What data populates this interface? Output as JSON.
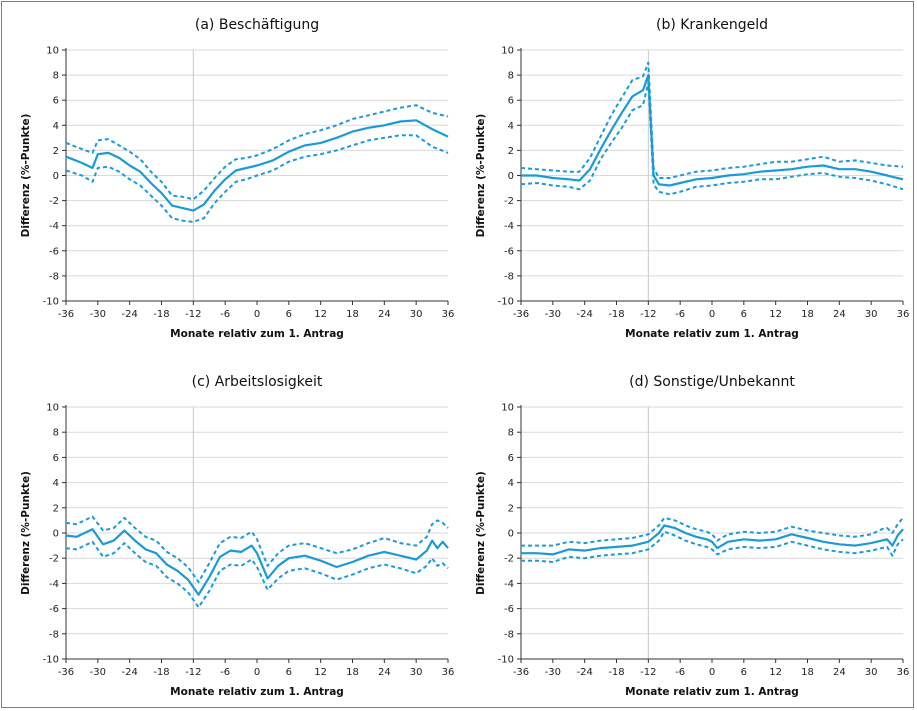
{
  "colors": {
    "line": "#1a9bd7",
    "frame": "#1ba1d9",
    "grid": "#d9d9d9"
  },
  "chart_data": [
    {
      "id": "a",
      "type": "line",
      "title": "(a) Beschäftigung",
      "xlabel": "Monate relativ zum 1. Antrag",
      "ylabel": "Differenz (%-Punkte)",
      "xlim": [
        -36,
        36
      ],
      "ylim": [
        -10,
        10
      ],
      "xticks": [
        -36,
        -30,
        -24,
        -18,
        -12,
        -6,
        0,
        6,
        12,
        18,
        24,
        30,
        36
      ],
      "yticks": [
        -10,
        -8,
        -6,
        -4,
        -2,
        0,
        2,
        4,
        6,
        8,
        10
      ],
      "reference_x": -12,
      "grid": true,
      "series": [
        {
          "role": "estimate",
          "x": [
            -36,
            -33,
            -31,
            -30,
            -28,
            -26,
            -24,
            -22,
            -20,
            -18,
            -16,
            -14,
            -12,
            -10,
            -8,
            -6,
            -4,
            -2,
            0,
            3,
            6,
            9,
            12,
            15,
            18,
            21,
            24,
            27,
            30,
            33,
            36
          ],
          "y": [
            1.5,
            1.0,
            0.6,
            1.7,
            1.8,
            1.4,
            0.8,
            0.3,
            -0.6,
            -1.4,
            -2.4,
            -2.6,
            -2.8,
            -2.3,
            -1.2,
            -0.3,
            0.4,
            0.6,
            0.8,
            1.2,
            1.9,
            2.4,
            2.6,
            3.0,
            3.5,
            3.8,
            4.0,
            4.3,
            4.4,
            3.7,
            3.1
          ]
        },
        {
          "role": "ci_upper",
          "x": [
            -36,
            -33,
            -31,
            -30,
            -28,
            -26,
            -24,
            -22,
            -20,
            -18,
            -16,
            -14,
            -12,
            -10,
            -8,
            -6,
            -4,
            -2,
            0,
            3,
            6,
            9,
            12,
            15,
            18,
            21,
            24,
            27,
            30,
            33,
            36
          ],
          "y": [
            2.6,
            2.1,
            1.8,
            2.8,
            2.9,
            2.4,
            1.9,
            1.3,
            0.3,
            -0.5,
            -1.6,
            -1.7,
            -1.9,
            -1.2,
            -0.2,
            0.7,
            1.3,
            1.4,
            1.6,
            2.1,
            2.8,
            3.3,
            3.6,
            4.0,
            4.5,
            4.8,
            5.1,
            5.4,
            5.6,
            5.0,
            4.7
          ]
        },
        {
          "role": "ci_lower",
          "x": [
            -36,
            -33,
            -31,
            -30,
            -28,
            -26,
            -24,
            -22,
            -20,
            -18,
            -16,
            -14,
            -12,
            -10,
            -8,
            -6,
            -4,
            -2,
            0,
            3,
            6,
            9,
            12,
            15,
            18,
            21,
            24,
            27,
            30,
            33,
            36
          ],
          "y": [
            0.4,
            0.0,
            -0.5,
            0.6,
            0.7,
            0.3,
            -0.3,
            -0.8,
            -1.6,
            -2.4,
            -3.4,
            -3.6,
            -3.7,
            -3.4,
            -2.2,
            -1.3,
            -0.5,
            -0.3,
            0.0,
            0.4,
            1.1,
            1.5,
            1.7,
            2.0,
            2.4,
            2.8,
            3.0,
            3.2,
            3.2,
            2.3,
            1.8
          ]
        }
      ]
    },
    {
      "id": "b",
      "type": "line",
      "title": "(b) Krankengeld",
      "xlabel": "Monate relativ zum 1. Antrag",
      "ylabel": "Differenz (%-Punkte)",
      "xlim": [
        -36,
        36
      ],
      "ylim": [
        -10,
        10
      ],
      "xticks": [
        -36,
        -30,
        -24,
        -18,
        -12,
        -6,
        0,
        6,
        12,
        18,
        24,
        30,
        36
      ],
      "yticks": [
        -10,
        -8,
        -6,
        -4,
        -2,
        0,
        2,
        4,
        6,
        8,
        10
      ],
      "reference_x": -12,
      "grid": true,
      "series": [
        {
          "role": "estimate",
          "x": [
            -36,
            -33,
            -30,
            -27,
            -25,
            -23,
            -21,
            -19,
            -17,
            -15,
            -13,
            -12,
            -11,
            -10,
            -8,
            -6,
            -3,
            0,
            3,
            6,
            9,
            12,
            15,
            18,
            21,
            24,
            27,
            30,
            33,
            36
          ],
          "y": [
            0.0,
            0.0,
            -0.2,
            -0.3,
            -0.4,
            0.5,
            2.1,
            3.6,
            5.0,
            6.3,
            6.8,
            8.0,
            0.0,
            -0.7,
            -0.8,
            -0.6,
            -0.3,
            -0.2,
            0.0,
            0.1,
            0.3,
            0.4,
            0.5,
            0.7,
            0.8,
            0.5,
            0.5,
            0.3,
            0.0,
            -0.3
          ]
        },
        {
          "role": "ci_upper",
          "x": [
            -36,
            -33,
            -30,
            -27,
            -25,
            -23,
            -21,
            -19,
            -17,
            -15,
            -13,
            -12,
            -11,
            -10,
            -8,
            -6,
            -3,
            0,
            3,
            6,
            9,
            12,
            15,
            18,
            21,
            24,
            27,
            30,
            33,
            36
          ],
          "y": [
            0.6,
            0.5,
            0.4,
            0.3,
            0.3,
            1.4,
            3.1,
            4.8,
            6.2,
            7.6,
            7.9,
            9.0,
            0.6,
            -0.2,
            -0.2,
            0.0,
            0.3,
            0.4,
            0.6,
            0.7,
            0.9,
            1.1,
            1.1,
            1.3,
            1.5,
            1.1,
            1.2,
            1.0,
            0.8,
            0.7
          ]
        },
        {
          "role": "ci_lower",
          "x": [
            -36,
            -33,
            -30,
            -27,
            -25,
            -23,
            -21,
            -19,
            -17,
            -15,
            -13,
            -12,
            -11,
            -10,
            -8,
            -6,
            -3,
            0,
            3,
            6,
            9,
            12,
            15,
            18,
            21,
            24,
            27,
            30,
            33,
            36
          ],
          "y": [
            -0.7,
            -0.6,
            -0.8,
            -0.9,
            -1.1,
            -0.4,
            1.3,
            2.6,
            3.8,
            5.2,
            5.6,
            7.4,
            -0.7,
            -1.3,
            -1.5,
            -1.3,
            -0.9,
            -0.8,
            -0.6,
            -0.5,
            -0.3,
            -0.3,
            -0.1,
            0.1,
            0.2,
            -0.1,
            -0.2,
            -0.4,
            -0.7,
            -1.1
          ]
        }
      ]
    },
    {
      "id": "c",
      "type": "line",
      "title": "(c) Arbeitslosigkeit",
      "xlabel": "Monate relativ zum 1. Antrag",
      "ylabel": "Differenz (%-Punkte)",
      "xlim": [
        -36,
        36
      ],
      "ylim": [
        -10,
        10
      ],
      "xticks": [
        -36,
        -30,
        -24,
        -18,
        -12,
        -6,
        0,
        6,
        12,
        18,
        24,
        30,
        36
      ],
      "yticks": [
        -10,
        -8,
        -6,
        -4,
        -2,
        0,
        2,
        4,
        6,
        8,
        10
      ],
      "reference_x": -12,
      "grid": true,
      "series": [
        {
          "role": "estimate",
          "x": [
            -36,
            -34,
            -31,
            -29,
            -27,
            -25,
            -23,
            -21,
            -19,
            -17,
            -15,
            -13,
            -11,
            -9,
            -7,
            -5,
            -3,
            -1,
            0,
            2,
            4,
            6,
            9,
            12,
            15,
            18,
            21,
            24,
            27,
            30,
            32,
            33,
            34,
            35,
            36
          ],
          "y": [
            -0.2,
            -0.3,
            0.3,
            -0.9,
            -0.6,
            0.2,
            -0.6,
            -1.3,
            -1.6,
            -2.5,
            -3.0,
            -3.7,
            -4.9,
            -3.5,
            -1.9,
            -1.4,
            -1.5,
            -1.0,
            -1.6,
            -3.6,
            -2.6,
            -2.0,
            -1.8,
            -2.2,
            -2.7,
            -2.3,
            -1.8,
            -1.5,
            -1.8,
            -2.1,
            -1.4,
            -0.6,
            -1.2,
            -0.7,
            -1.2
          ]
        },
        {
          "role": "ci_upper",
          "x": [
            -36,
            -34,
            -31,
            -29,
            -27,
            -25,
            -23,
            -21,
            -19,
            -17,
            -15,
            -13,
            -11,
            -9,
            -7,
            -5,
            -3,
            -1,
            0,
            2,
            4,
            6,
            9,
            12,
            15,
            18,
            21,
            24,
            27,
            30,
            32,
            33,
            34,
            35,
            36
          ],
          "y": [
            0.8,
            0.7,
            1.3,
            0.2,
            0.4,
            1.2,
            0.4,
            -0.3,
            -0.6,
            -1.5,
            -2.0,
            -2.7,
            -3.9,
            -2.4,
            -0.8,
            -0.3,
            -0.4,
            0.1,
            -0.5,
            -2.6,
            -1.6,
            -1.0,
            -0.8,
            -1.2,
            -1.6,
            -1.3,
            -0.8,
            -0.4,
            -0.8,
            -1.0,
            -0.3,
            0.7,
            1.0,
            0.8,
            0.4
          ]
        },
        {
          "role": "ci_lower",
          "x": [
            -36,
            -34,
            -31,
            -29,
            -27,
            -25,
            -23,
            -21,
            -19,
            -17,
            -15,
            -13,
            -11,
            -9,
            -7,
            -5,
            -3,
            -1,
            0,
            2,
            4,
            6,
            9,
            12,
            15,
            18,
            21,
            24,
            27,
            30,
            32,
            33,
            34,
            35,
            36
          ],
          "y": [
            -1.2,
            -1.3,
            -0.7,
            -1.9,
            -1.6,
            -0.8,
            -1.6,
            -2.3,
            -2.6,
            -3.5,
            -4.0,
            -4.7,
            -5.9,
            -4.6,
            -3.0,
            -2.5,
            -2.6,
            -2.1,
            -2.7,
            -4.5,
            -3.6,
            -3.0,
            -2.8,
            -3.2,
            -3.7,
            -3.3,
            -2.8,
            -2.5,
            -2.8,
            -3.2,
            -2.6,
            -2.0,
            -2.6,
            -2.4,
            -2.8
          ]
        }
      ]
    },
    {
      "id": "d",
      "type": "line",
      "title": "(d) Sonstige/Unbekannt",
      "xlabel": "Monate relativ zum 1. Antrag",
      "ylabel": "Differenz (%-Punkte)",
      "xlim": [
        -36,
        36
      ],
      "ylim": [
        -10,
        10
      ],
      "xticks": [
        -36,
        -30,
        -24,
        -18,
        -12,
        -6,
        0,
        6,
        12,
        18,
        24,
        30,
        36
      ],
      "yticks": [
        -10,
        -8,
        -6,
        -4,
        -2,
        0,
        2,
        4,
        6,
        8,
        10
      ],
      "reference_x": -12,
      "grid": true,
      "series": [
        {
          "role": "estimate",
          "x": [
            -36,
            -33,
            -30,
            -27,
            -24,
            -21,
            -18,
            -15,
            -13,
            -12,
            -10,
            -9,
            -7,
            -5,
            -3,
            -1,
            0,
            1,
            3,
            6,
            9,
            12,
            15,
            18,
            21,
            24,
            27,
            30,
            32,
            33,
            34,
            35,
            36
          ],
          "y": [
            -1.6,
            -1.6,
            -1.7,
            -1.3,
            -1.4,
            -1.2,
            -1.1,
            -1.0,
            -0.8,
            -0.7,
            0.0,
            0.6,
            0.4,
            0.0,
            -0.3,
            -0.5,
            -0.7,
            -1.2,
            -0.7,
            -0.5,
            -0.6,
            -0.5,
            -0.1,
            -0.4,
            -0.7,
            -0.9,
            -1.0,
            -0.8,
            -0.6,
            -0.5,
            -1.0,
            -0.2,
            0.3
          ]
        },
        {
          "role": "ci_upper",
          "x": [
            -36,
            -33,
            -30,
            -27,
            -24,
            -21,
            -18,
            -15,
            -13,
            -12,
            -10,
            -9,
            -7,
            -5,
            -3,
            -1,
            0,
            1,
            3,
            6,
            9,
            12,
            15,
            18,
            21,
            24,
            27,
            30,
            32,
            33,
            34,
            35,
            36
          ],
          "y": [
            -1.0,
            -1.0,
            -1.0,
            -0.7,
            -0.8,
            -0.6,
            -0.5,
            -0.4,
            -0.2,
            -0.1,
            0.6,
            1.2,
            1.0,
            0.6,
            0.3,
            0.1,
            -0.1,
            -0.6,
            -0.1,
            0.1,
            0.0,
            0.1,
            0.5,
            0.2,
            0.0,
            -0.2,
            -0.3,
            -0.1,
            0.3,
            0.4,
            0.0,
            0.7,
            1.2
          ]
        },
        {
          "role": "ci_lower",
          "x": [
            -36,
            -33,
            -30,
            -27,
            -24,
            -21,
            -18,
            -15,
            -13,
            -12,
            -10,
            -9,
            -7,
            -5,
            -3,
            -1,
            0,
            1,
            3,
            6,
            9,
            12,
            15,
            18,
            21,
            24,
            27,
            30,
            32,
            33,
            34,
            35,
            36
          ],
          "y": [
            -2.2,
            -2.2,
            -2.3,
            -1.9,
            -2.0,
            -1.8,
            -1.7,
            -1.6,
            -1.4,
            -1.3,
            -0.6,
            0.1,
            -0.2,
            -0.6,
            -0.9,
            -1.1,
            -1.3,
            -1.7,
            -1.3,
            -1.1,
            -1.2,
            -1.1,
            -0.7,
            -1.0,
            -1.3,
            -1.5,
            -1.6,
            -1.4,
            -1.2,
            -1.1,
            -1.8,
            -0.9,
            -0.5
          ]
        }
      ]
    }
  ]
}
